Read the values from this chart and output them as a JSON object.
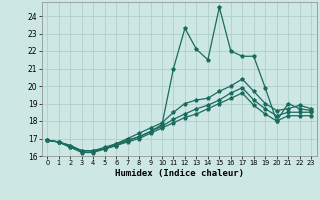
{
  "xlabel": "Humidex (Indice chaleur)",
  "background_color": "#cde8e4",
  "grid_color": "#b0d0cc",
  "line_color": "#1a6b5e",
  "x": [
    0,
    1,
    2,
    3,
    4,
    5,
    6,
    7,
    8,
    9,
    10,
    11,
    12,
    13,
    14,
    15,
    16,
    17,
    18,
    19,
    20,
    21,
    22,
    23
  ],
  "series_spike": [
    16.9,
    16.8,
    16.6,
    16.3,
    16.3,
    16.4,
    16.7,
    16.9,
    17.1,
    17.4,
    17.8,
    21.0,
    23.3,
    22.1,
    21.5,
    24.5,
    22.0,
    21.7,
    21.7,
    19.9,
    18.0,
    19.0,
    18.7,
    18.6
  ],
  "series_upper": [
    16.9,
    16.8,
    16.6,
    16.3,
    16.3,
    16.5,
    16.7,
    17.0,
    17.3,
    17.6,
    17.9,
    18.5,
    19.0,
    19.2,
    19.3,
    19.7,
    20.0,
    20.4,
    19.7,
    19.0,
    18.6,
    18.7,
    18.9,
    18.7
  ],
  "series_mid": [
    16.9,
    16.8,
    16.5,
    16.3,
    16.3,
    16.4,
    16.6,
    16.9,
    17.1,
    17.4,
    17.7,
    18.1,
    18.4,
    18.7,
    18.9,
    19.2,
    19.6,
    19.9,
    19.2,
    18.7,
    18.3,
    18.5,
    18.5,
    18.5
  ],
  "series_lower": [
    16.9,
    16.8,
    16.5,
    16.2,
    16.2,
    16.4,
    16.6,
    16.8,
    17.0,
    17.3,
    17.6,
    17.9,
    18.2,
    18.4,
    18.7,
    19.0,
    19.3,
    19.6,
    18.9,
    18.4,
    18.0,
    18.3,
    18.3,
    18.3
  ],
  "ylim": [
    16,
    24.8
  ],
  "xlim": [
    -0.5,
    23.5
  ],
  "yticks": [
    16,
    17,
    18,
    19,
    20,
    21,
    22,
    23,
    24
  ],
  "xticks": [
    0,
    1,
    2,
    3,
    4,
    5,
    6,
    7,
    8,
    9,
    10,
    11,
    12,
    13,
    14,
    15,
    16,
    17,
    18,
    19,
    20,
    21,
    22,
    23
  ]
}
